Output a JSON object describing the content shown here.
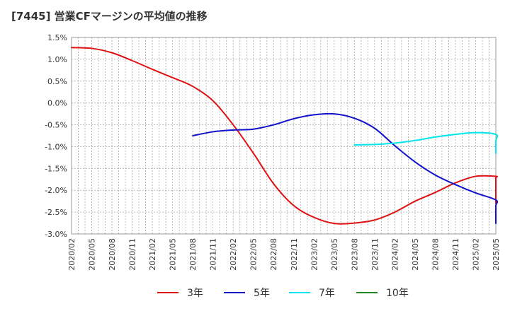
{
  "header": {
    "title": "[7445]  営業CFマージンの平均値の推移"
  },
  "chart_data": {
    "type": "line",
    "title": "[7445]  営業CFマージンの平均値の推移",
    "xlabel": "",
    "ylabel": "",
    "ylim": [
      -3.0,
      1.5
    ],
    "grid": true,
    "legend_position": "bottom",
    "y_ticks": [
      "1.5%",
      "1.0%",
      "0.5%",
      "0.0%",
      "-0.5%",
      "-1.0%",
      "-1.5%",
      "-2.0%",
      "-2.5%",
      "-3.0%"
    ],
    "y_tick_values": [
      1.5,
      1.0,
      0.5,
      0.0,
      -0.5,
      -1.0,
      -1.5,
      -2.0,
      -2.5,
      -3.0
    ],
    "x_ticks": [
      "2020/02",
      "2020/05",
      "2020/08",
      "2020/11",
      "2021/02",
      "2021/05",
      "2021/08",
      "2021/11",
      "2022/02",
      "2022/05",
      "2022/08",
      "2022/11",
      "2023/02",
      "2023/05",
      "2023/08",
      "2023/11",
      "2024/02",
      "2024/05",
      "2024/08",
      "2024/11",
      "2025/02",
      "2025/05"
    ],
    "series": [
      {
        "name": "3年",
        "color": "#dd1111",
        "points": [
          [
            "2020/02",
            1.27
          ],
          [
            "2020/05",
            1.25
          ],
          [
            "2020/08",
            1.15
          ],
          [
            "2020/11",
            0.97
          ],
          [
            "2021/02",
            0.77
          ],
          [
            "2021/05",
            0.58
          ],
          [
            "2021/08",
            0.38
          ],
          [
            "2021/11",
            0.05
          ],
          [
            "2022/02",
            -0.5
          ],
          [
            "2022/05",
            -1.15
          ],
          [
            "2022/08",
            -1.85
          ],
          [
            "2022/11",
            -2.35
          ],
          [
            "2023/02",
            -2.62
          ],
          [
            "2023/05",
            -2.76
          ],
          [
            "2023/08",
            -2.75
          ],
          [
            "2023/11",
            -2.68
          ],
          [
            "2024/02",
            -2.5
          ],
          [
            "2024/05",
            -2.25
          ],
          [
            "2024/08",
            -2.05
          ],
          [
            "2024/11",
            -1.83
          ],
          [
            "2025/02",
            -1.68
          ],
          [
            "2025/05",
            -1.68
          ],
          [
            "2025/08",
            -1.7
          ],
          [
            "2025/11",
            -1.73
          ],
          [
            "2026/02",
            -1.9
          ],
          [
            "2026/05",
            -2.3
          ]
        ]
      },
      {
        "name": "5年",
        "color": "#1111cc",
        "points": [
          [
            "2021/08",
            -0.75
          ],
          [
            "2021/11",
            -0.66
          ],
          [
            "2022/02",
            -0.62
          ],
          [
            "2022/05",
            -0.6
          ],
          [
            "2022/08",
            -0.5
          ],
          [
            "2022/11",
            -0.36
          ],
          [
            "2023/02",
            -0.27
          ],
          [
            "2023/05",
            -0.25
          ],
          [
            "2023/08",
            -0.35
          ],
          [
            "2023/11",
            -0.58
          ],
          [
            "2024/02",
            -0.98
          ],
          [
            "2024/05",
            -1.35
          ],
          [
            "2024/08",
            -1.65
          ],
          [
            "2024/11",
            -1.87
          ],
          [
            "2025/02",
            -2.06
          ],
          [
            "2025/05",
            -2.22
          ],
          [
            "2025/08",
            -2.35
          ],
          [
            "2025/11",
            -2.52
          ],
          [
            "2026/02",
            -2.76
          ]
        ]
      },
      {
        "name": "7年",
        "color": "#00e5ee",
        "points": [
          [
            "2023/08",
            -0.96
          ],
          [
            "2023/11",
            -0.95
          ],
          [
            "2024/02",
            -0.92
          ],
          [
            "2024/05",
            -0.86
          ],
          [
            "2024/08",
            -0.78
          ],
          [
            "2024/11",
            -0.72
          ],
          [
            "2025/02",
            -0.68
          ],
          [
            "2025/05",
            -0.72
          ],
          [
            "2025/08",
            -0.87
          ],
          [
            "2025/11",
            -1.15
          ]
        ]
      },
      {
        "name": "10年",
        "color": "#228822",
        "points": []
      }
    ]
  }
}
